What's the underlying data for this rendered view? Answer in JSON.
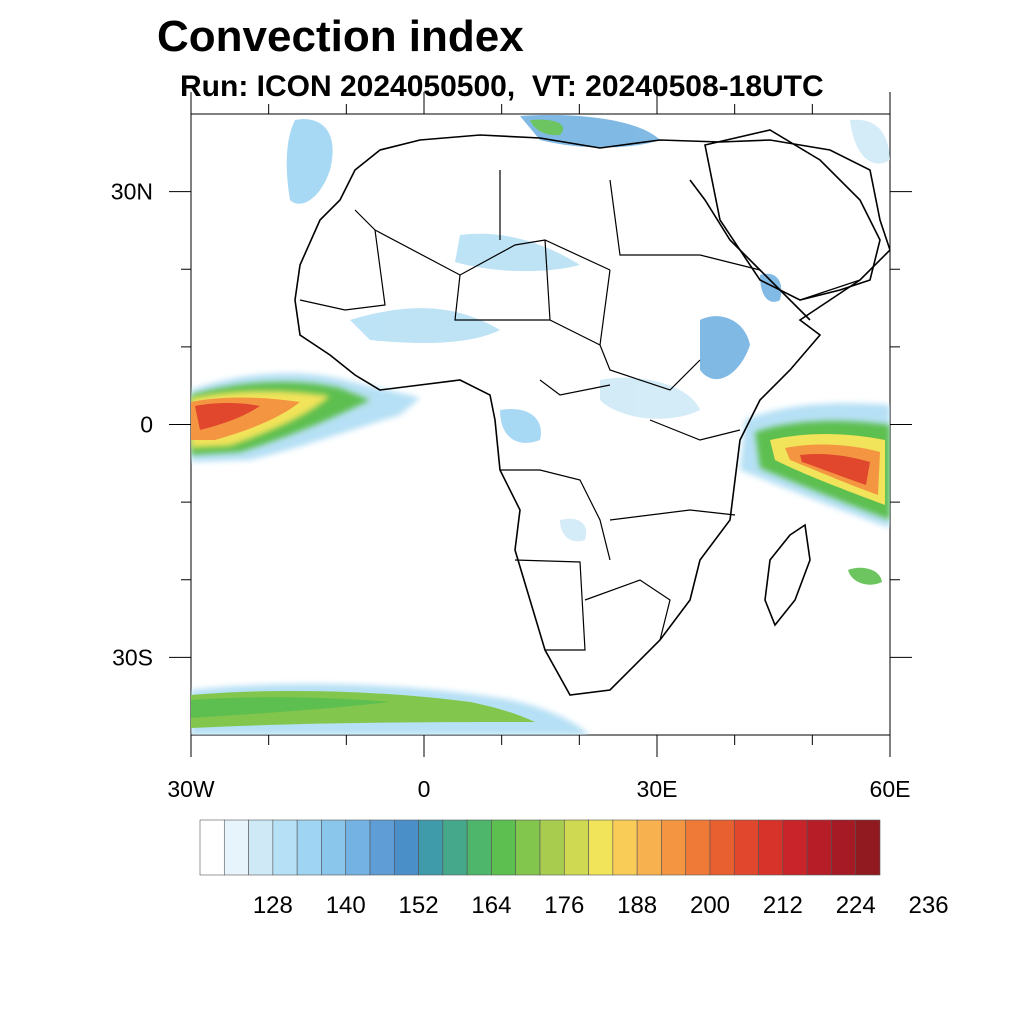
{
  "title": "Convection index",
  "subtitle": "Run: ICON 2024050500,  VT: 20240508-18UTC",
  "map": {
    "lon_range": [
      -30,
      60
    ],
    "lat_range": [
      -40,
      40
    ],
    "lat_ticks": [
      {
        "value": 30,
        "label": "30N"
      },
      {
        "value": 0,
        "label": "0"
      },
      {
        "value": -30,
        "label": "30S"
      }
    ],
    "lon_ticks": [
      {
        "value": -30,
        "label": "30W"
      },
      {
        "value": 0,
        "label": "0"
      },
      {
        "value": 30,
        "label": "30E"
      },
      {
        "value": 60,
        "label": "60E"
      }
    ],
    "minor_lon_ticks": [
      -20,
      -10,
      10,
      20,
      40,
      50
    ],
    "minor_lat_ticks": [
      20,
      10,
      -10,
      -20
    ]
  },
  "colorbar": {
    "colors": [
      "#ffffff",
      "#e8f4fb",
      "#cfe9f7",
      "#b6e0f5",
      "#9fd5f3",
      "#8ac5ec",
      "#74b2e3",
      "#5f9dd6",
      "#4b8fc8",
      "#3f9aa9",
      "#45a88a",
      "#4db66a",
      "#5dbf4f",
      "#83c64d",
      "#a8cd4e",
      "#cfda52",
      "#f1e35a",
      "#f8cc56",
      "#f8b14f",
      "#f49641",
      "#ef7a37",
      "#e85f30",
      "#e0472d",
      "#d8332b",
      "#c8242a",
      "#b71d27",
      "#a51a24",
      "#901a1f"
    ],
    "labels": [
      "128",
      "140",
      "152",
      "164",
      "176",
      "188",
      "200",
      "212",
      "224",
      "236"
    ]
  }
}
